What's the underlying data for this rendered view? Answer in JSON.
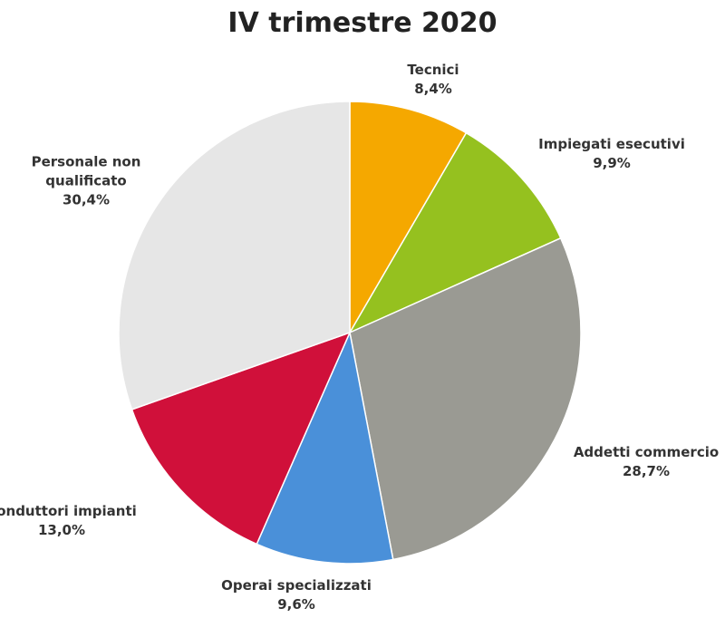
{
  "chart_data": {
    "type": "pie",
    "title": "IV trimestre 2020",
    "categories": [
      "Tecnici",
      "Impiegati esecutivi",
      "Addetti commercio",
      "Operai specializzati",
      "Conduttori impianti",
      "Personale non qualificato"
    ],
    "values": [
      8.4,
      9.9,
      28.7,
      9.6,
      13.0,
      30.4
    ],
    "value_labels": [
      "8,4%",
      "9,9%",
      "28,7%",
      "9,6%",
      "13,0%",
      "30,4%"
    ],
    "colors": [
      "#f5a800",
      "#95c11f",
      "#9a9a93",
      "#4a90d9",
      "#d0103a",
      "#e6e6e6"
    ]
  }
}
